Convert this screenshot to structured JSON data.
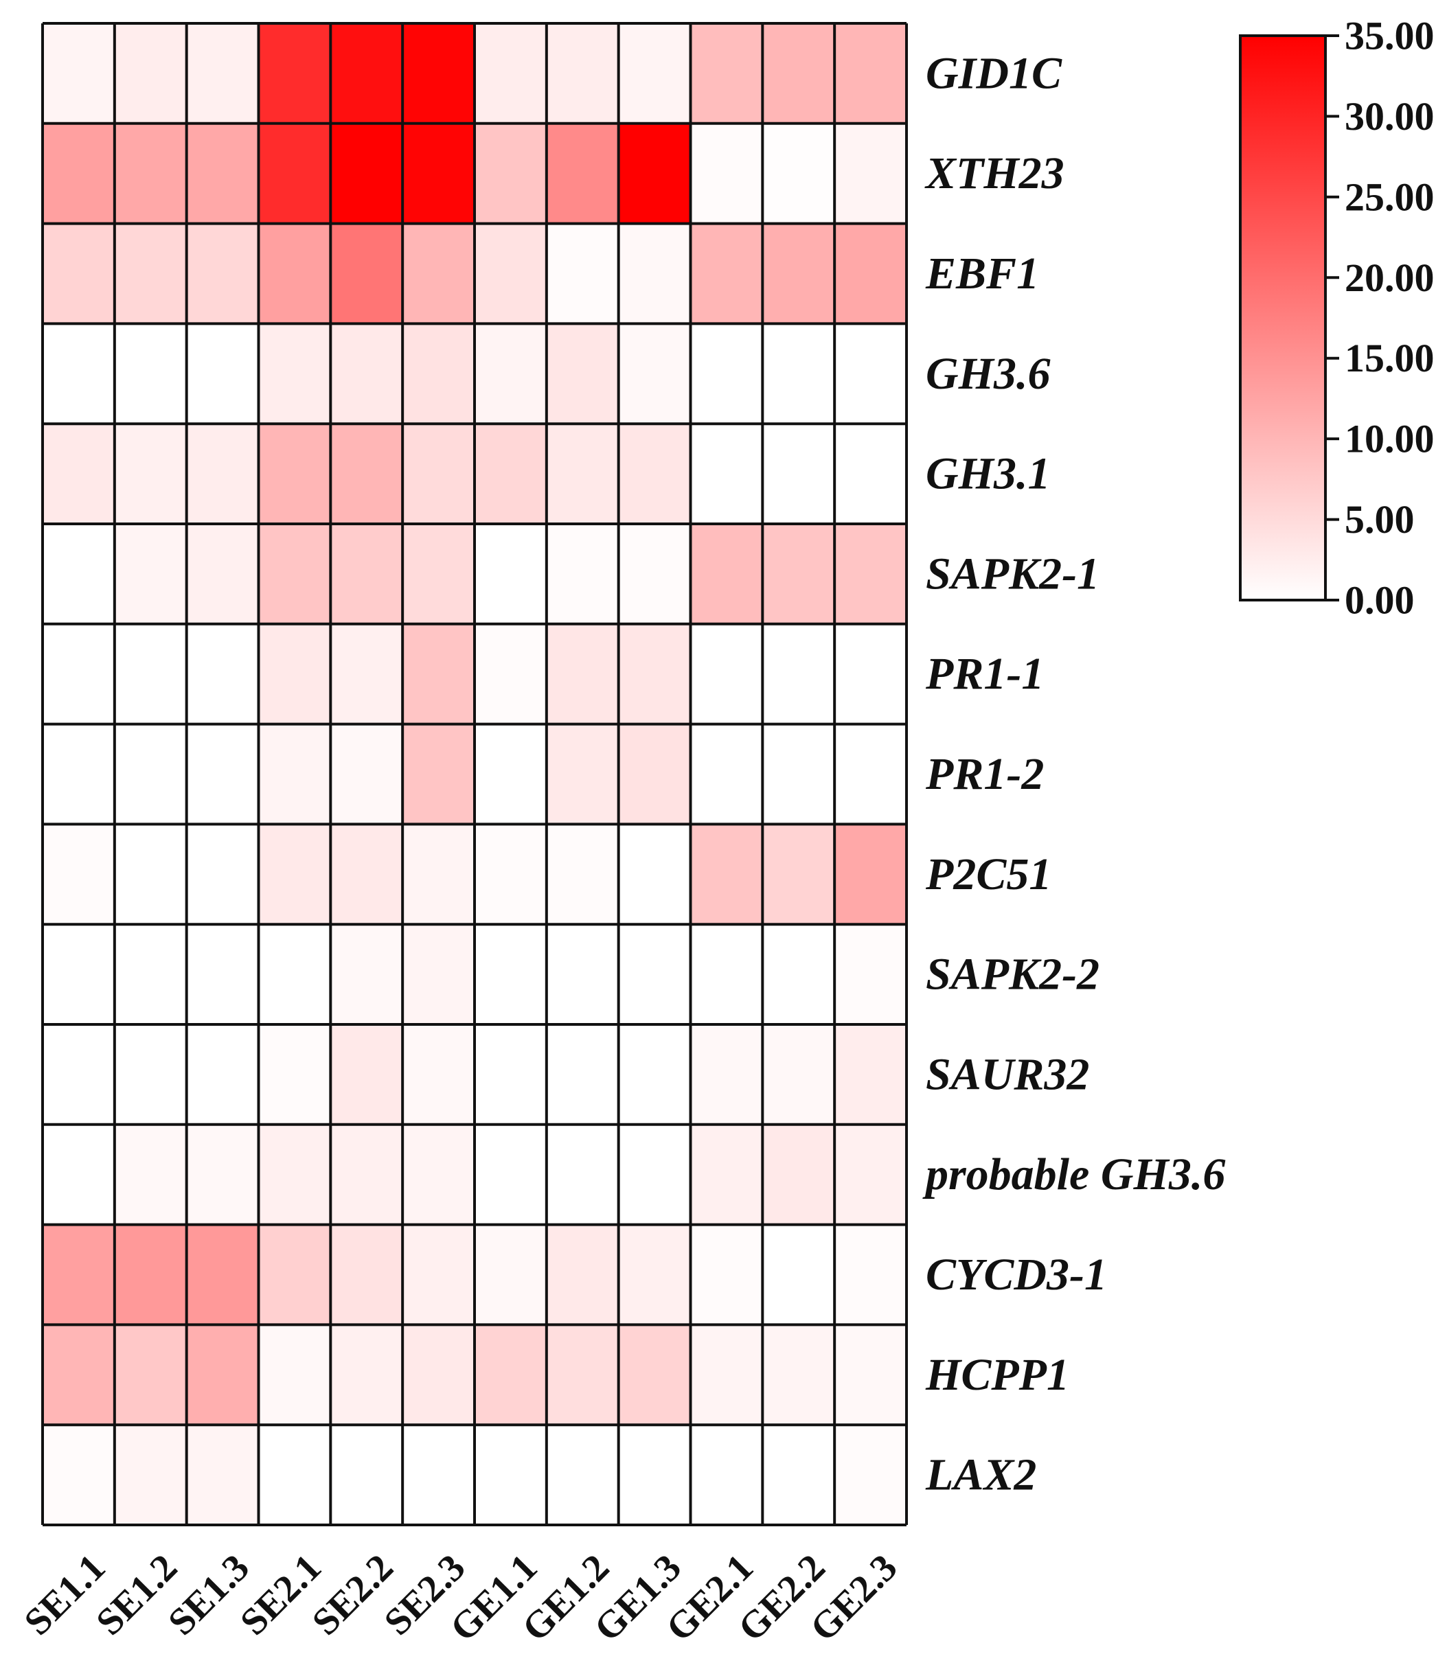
{
  "chart_data": {
    "type": "heatmap",
    "title": "",
    "xlabel": "",
    "ylabel": "",
    "x_categories": [
      "SE1.1",
      "SE1.2",
      "SE1.3",
      "SE2.1",
      "SE2.2",
      "SE2.3",
      "GE1.1",
      "GE1.2",
      "GE1.3",
      "GE2.1",
      "GE2.2",
      "GE2.3"
    ],
    "y_categories": [
      "GID1C",
      "XTH23",
      "EBF1",
      "GH3.6",
      "GH3.1",
      "SAPK2-1",
      "PR1-1",
      "PR1-2",
      "P2C51",
      "SAPK2-2",
      "SAUR32",
      "probable GH3.6",
      "CYCD3-1",
      "HCPP1",
      "LAX2"
    ],
    "values": [
      [
        1.5,
        2.5,
        2.0,
        29.0,
        33.0,
        34.5,
        2.5,
        2.5,
        1.5,
        9.0,
        10.0,
        10.0
      ],
      [
        13.0,
        12.0,
        12.0,
        29.0,
        35.0,
        34.5,
        8.0,
        16.0,
        35.0,
        0.5,
        0.3,
        1.5
      ],
      [
        6.0,
        5.5,
        5.5,
        13.0,
        19.0,
        10.0,
        4.0,
        0.5,
        1.0,
        10.0,
        11.0,
        12.0
      ],
      [
        0.0,
        0.0,
        0.0,
        2.5,
        3.0,
        4.0,
        1.5,
        3.5,
        1.0,
        0.0,
        0.0,
        0.0
      ],
      [
        3.0,
        2.0,
        2.5,
        10.0,
        10.0,
        5.0,
        5.5,
        3.0,
        3.5,
        0.0,
        0.0,
        0.0
      ],
      [
        0.0,
        1.5,
        2.0,
        8.0,
        7.0,
        5.0,
        0.0,
        0.5,
        0.5,
        9.0,
        8.0,
        8.0
      ],
      [
        0.0,
        0.0,
        0.0,
        3.0,
        2.0,
        8.0,
        0.5,
        3.5,
        3.5,
        0.0,
        0.0,
        0.0
      ],
      [
        0.0,
        0.0,
        0.0,
        1.5,
        1.0,
        8.0,
        0.0,
        3.0,
        4.0,
        0.0,
        0.0,
        0.0
      ],
      [
        0.5,
        0.0,
        0.0,
        3.0,
        3.0,
        1.5,
        0.5,
        0.5,
        0.0,
        8.0,
        6.0,
        12.0
      ],
      [
        0.0,
        0.0,
        0.0,
        0.0,
        1.0,
        1.5,
        0.0,
        0.0,
        0.0,
        0.0,
        0.0,
        0.5
      ],
      [
        0.0,
        0.0,
        0.0,
        0.5,
        3.0,
        1.0,
        0.0,
        0.0,
        0.0,
        1.0,
        1.0,
        2.5
      ],
      [
        0.0,
        1.0,
        1.0,
        2.0,
        2.0,
        1.5,
        0.0,
        0.0,
        0.0,
        2.0,
        3.0,
        2.0
      ],
      [
        13.0,
        14.0,
        14.0,
        6.5,
        4.0,
        2.0,
        1.0,
        3.0,
        2.0,
        0.5,
        0.0,
        0.5
      ],
      [
        10.0,
        7.5,
        11.0,
        1.0,
        2.0,
        3.0,
        6.0,
        4.5,
        6.0,
        1.5,
        1.5,
        1.0
      ],
      [
        0.5,
        1.5,
        1.5,
        0.0,
        0.0,
        0.0,
        0.0,
        0.0,
        0.0,
        0.0,
        0.0,
        0.5
      ]
    ],
    "colorbar": {
      "min": 0,
      "max": 35,
      "ticks": [
        "0.00",
        "5.00",
        "10.00",
        "15.00",
        "20.00",
        "25.00",
        "30.00",
        "35.00"
      ],
      "color_low": "#ffffff",
      "color_high": "#ff0000",
      "placement": "top-right"
    },
    "grid": true,
    "grid_color": "#111111"
  }
}
